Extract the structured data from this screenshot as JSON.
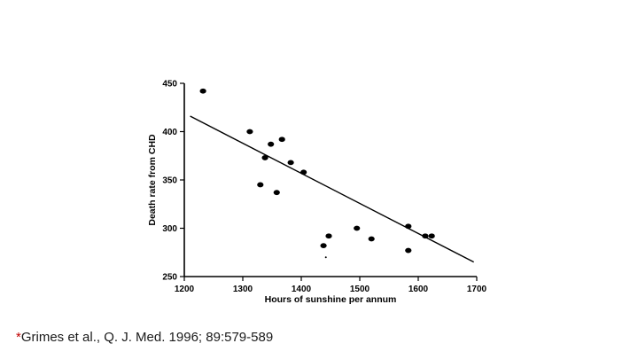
{
  "chart_data": {
    "type": "scatter",
    "title": "",
    "xlabel": "Hours of sunshine per annum",
    "ylabel": "Death rate from CHD",
    "xlim": [
      1200,
      1700
    ],
    "ylim": [
      250,
      450
    ],
    "xticks": [
      1200,
      1300,
      1400,
      1500,
      1600,
      1700
    ],
    "yticks": [
      250,
      300,
      350,
      400,
      450
    ],
    "grid": false,
    "points": [
      {
        "x": 1232,
        "y": 442
      },
      {
        "x": 1312,
        "y": 400
      },
      {
        "x": 1338,
        "y": 373
      },
      {
        "x": 1348,
        "y": 387
      },
      {
        "x": 1367,
        "y": 392
      },
      {
        "x": 1382,
        "y": 368
      },
      {
        "x": 1404,
        "y": 358
      },
      {
        "x": 1330,
        "y": 345
      },
      {
        "x": 1358,
        "y": 337
      },
      {
        "x": 1495,
        "y": 300
      },
      {
        "x": 1520,
        "y": 289
      },
      {
        "x": 1447,
        "y": 292
      },
      {
        "x": 1438,
        "y": 282
      },
      {
        "x": 1583,
        "y": 302
      },
      {
        "x": 1612,
        "y": 292
      },
      {
        "x": 1623,
        "y": 292
      },
      {
        "x": 1583,
        "y": 277
      }
    ],
    "stray_mark": {
      "x": 1442,
      "y": 270
    },
    "trendline": {
      "x": [
        1210,
        1695
      ],
      "y": [
        416,
        265
      ]
    }
  },
  "citation": {
    "marker": "*",
    "text": "Grimes et al.,  Q. J. Med. 1996; 89:579-589"
  }
}
